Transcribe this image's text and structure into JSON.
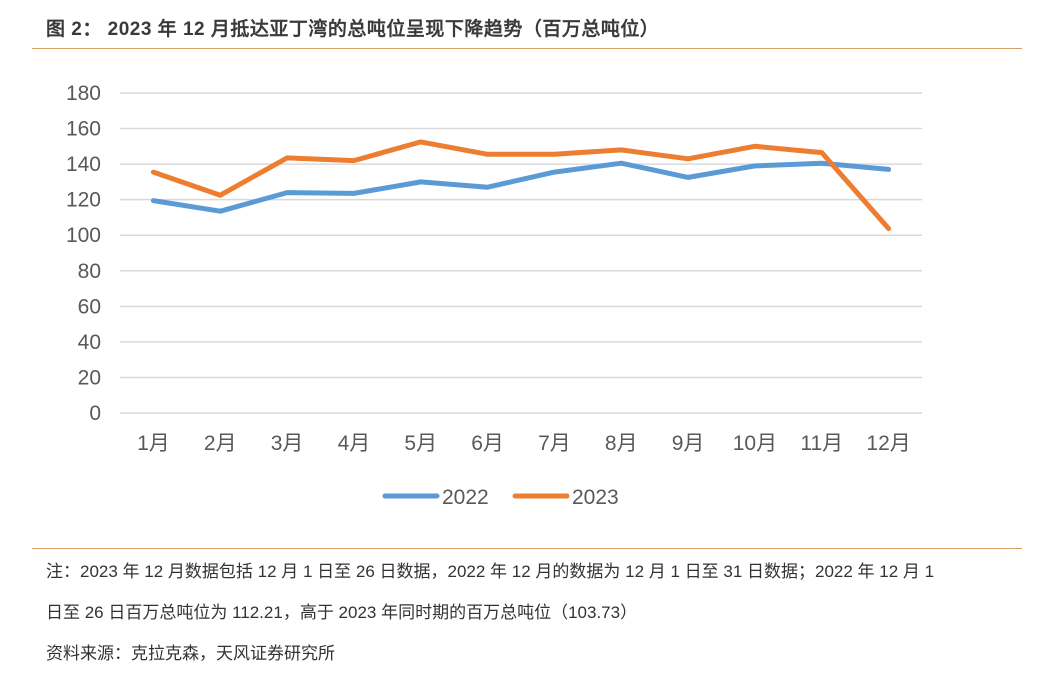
{
  "figure": {
    "title": "图 2： 2023 年 12 月抵达亚丁湾的总吨位呈现下降趋势（百万总吨位）",
    "note_line1": "注：2023 年 12 月数据包括 12 月 1 日至 26 日数据，2022 年 12 月的数据为 12 月 1 日至 31 日数据；2022 年 12 月 1",
    "note_line2": "日至 26 日百万总吨位为 112.21，高于 2023 年同时期的百万总吨位（103.73）",
    "source": "资料来源：克拉克森，天风证券研究所"
  },
  "chart_data": {
    "type": "line",
    "title": "",
    "xlabel": "",
    "ylabel": "",
    "categories": [
      "1月",
      "2月",
      "3月",
      "4月",
      "5月",
      "6月",
      "7月",
      "8月",
      "9月",
      "10月",
      "11月",
      "12月"
    ],
    "ylim": [
      0,
      180
    ],
    "yticks": [
      0,
      20,
      40,
      60,
      80,
      100,
      120,
      140,
      160,
      180
    ],
    "grid": true,
    "legend_position": "bottom",
    "series": [
      {
        "name": "2022",
        "color": "#5b9bd5",
        "values": [
          119.5,
          113.5,
          124,
          123.5,
          130,
          127,
          135.5,
          140.5,
          132.5,
          139,
          140.5,
          137
        ]
      },
      {
        "name": "2023",
        "color": "#ed7d31",
        "values": [
          135.5,
          122.5,
          143.5,
          142,
          152.5,
          145.5,
          145.5,
          148,
          143,
          150,
          146.5,
          103.7
        ]
      }
    ]
  }
}
